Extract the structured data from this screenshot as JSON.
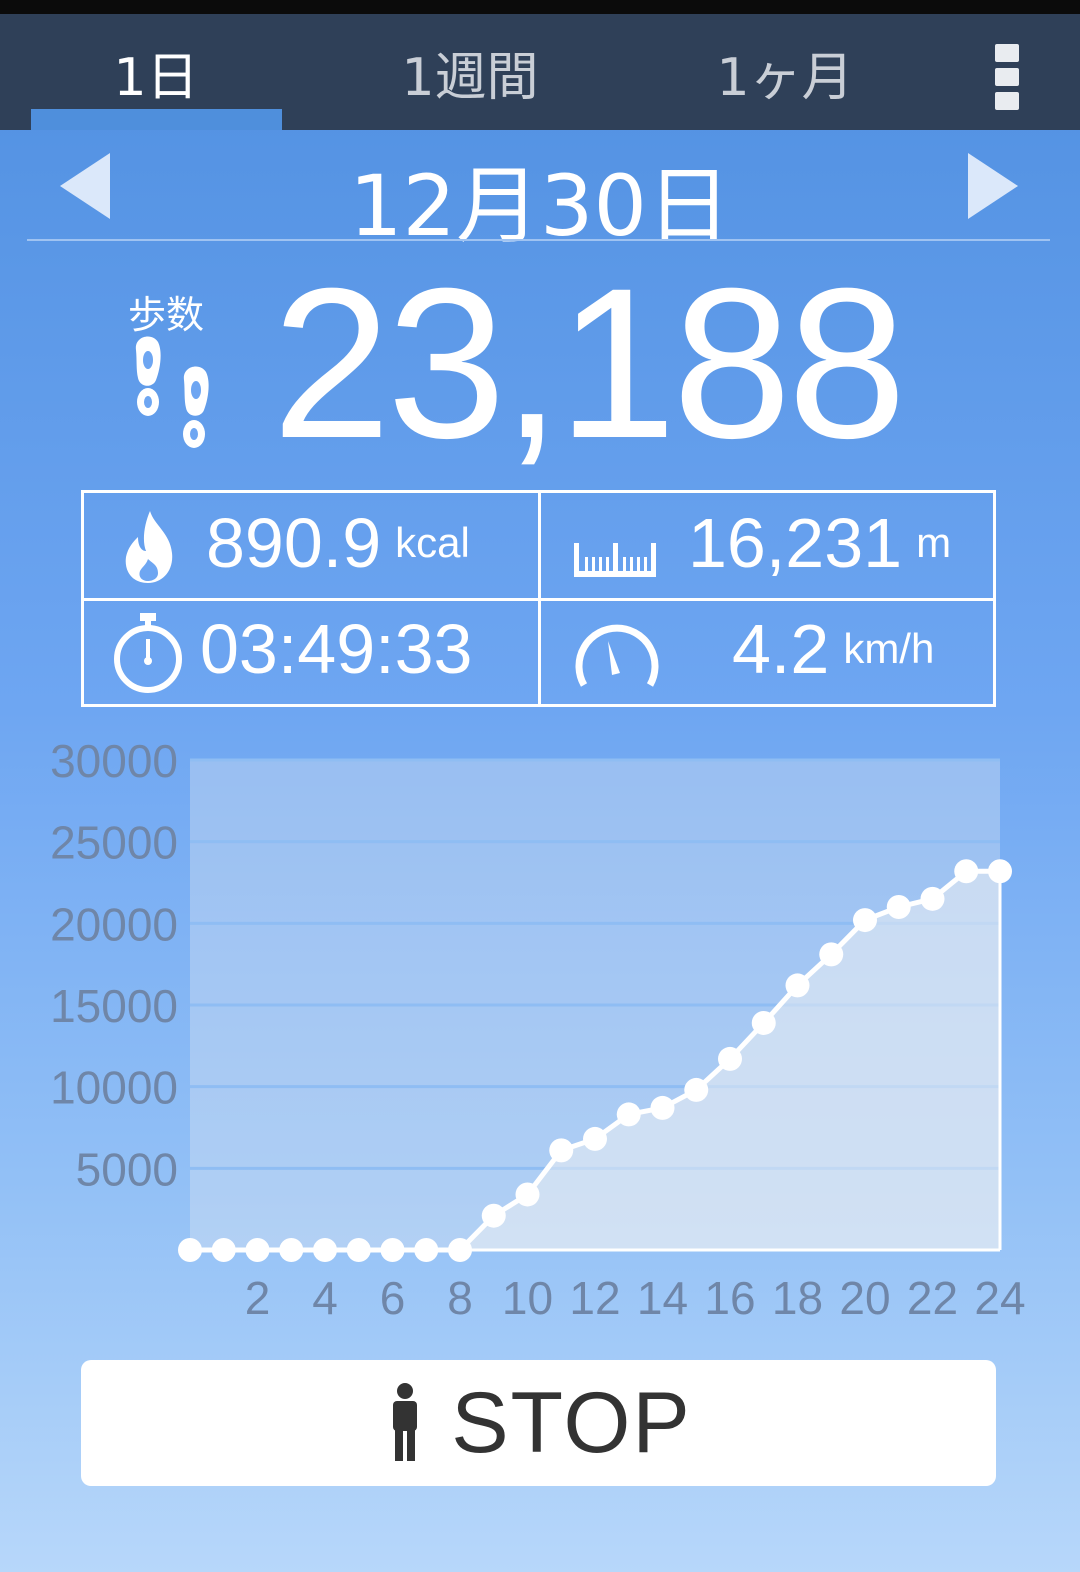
{
  "tabs": [
    {
      "label": "1日",
      "active": true
    },
    {
      "label": "1週間",
      "active": false
    },
    {
      "label": "1ヶ月",
      "active": false
    }
  ],
  "date": "12月30日",
  "steps": {
    "label": "歩数",
    "value": "23,188"
  },
  "stats": {
    "calories": {
      "value": "890.9",
      "unit": "kcal",
      "icon": "flame-icon"
    },
    "distance": {
      "value": "16,231",
      "unit": "m",
      "icon": "ruler-icon"
    },
    "time": {
      "value": "03:49:33",
      "icon": "stopwatch-icon"
    },
    "speed": {
      "value": "4.2",
      "unit": "km/h",
      "icon": "speedometer-icon"
    }
  },
  "stop_button": {
    "label": "STOP",
    "icon": "walking-person-icon"
  },
  "colors": {
    "tabbar": "#2f4058",
    "accent": "#4f8fdc",
    "text": "#ffffff",
    "axis_text": "#6f86a8"
  },
  "chart_data": {
    "type": "line",
    "x": [
      0,
      1,
      2,
      3,
      4,
      5,
      6,
      7,
      8,
      9,
      10,
      11,
      12,
      13,
      14,
      15,
      16,
      17,
      18,
      19,
      20,
      21,
      22,
      23,
      24
    ],
    "values": [
      0,
      0,
      0,
      0,
      0,
      0,
      0,
      0,
      0,
      2100,
      3400,
      6100,
      6800,
      8300,
      8700,
      9800,
      11700,
      13900,
      16200,
      18100,
      20200,
      21000,
      21500,
      23188,
      23188
    ],
    "xticks": [
      2,
      4,
      6,
      8,
      10,
      12,
      14,
      16,
      18,
      20,
      22,
      24
    ],
    "yticks": [
      5000,
      10000,
      15000,
      20000,
      25000,
      30000
    ],
    "xlim": [
      0,
      24
    ],
    "ylim": [
      0,
      30000
    ],
    "grid": true
  }
}
